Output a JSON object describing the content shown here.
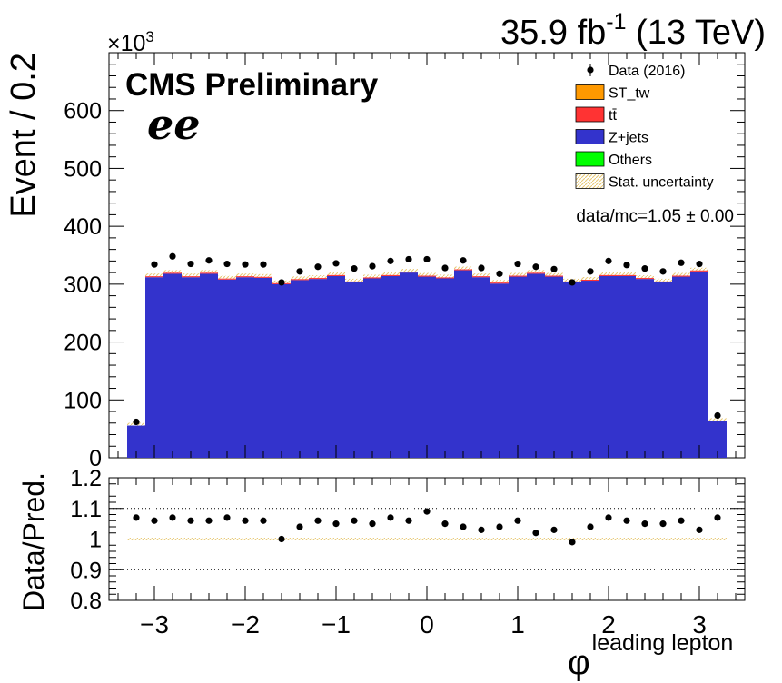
{
  "header": {
    "lumi": "35.9 fb",
    "lumi_exp": "-1",
    "energy": "(13 TeV)",
    "cms_label": "CMS Preliminary",
    "channel": "ee",
    "multiplier_base": "×10",
    "multiplier_exp": "3",
    "ratio_text": "data/mc=1.05 ± 0.00"
  },
  "colors": {
    "st_tw": "#ff9900",
    "ttbar": "#ff3333",
    "zjets": "#3333cc",
    "others": "#00ff00",
    "stat_unc": "#e8c872",
    "data": "#000000"
  },
  "chart_data": [
    {
      "type": "bar",
      "panel": "main",
      "ylabel": "Event / 0.2",
      "ylim": [
        0,
        700
      ],
      "y_unit_multiplier": 1000,
      "yticks": [
        0,
        100,
        200,
        300,
        400,
        500,
        600
      ],
      "xlim": [
        -3.5,
        3.5
      ],
      "bin_edges": [
        -3.3,
        -3.1,
        -2.9,
        -2.7,
        -2.5,
        -2.3,
        -2.1,
        -1.9,
        -1.7,
        -1.5,
        -1.3,
        -1.1,
        -0.9,
        -0.7,
        -0.5,
        -0.3,
        -0.1,
        0.1,
        0.3,
        0.5,
        0.7,
        0.9,
        1.1,
        1.3,
        1.5,
        1.7,
        1.9,
        2.1,
        2.3,
        2.5,
        2.7,
        2.9,
        3.1,
        3.3
      ],
      "legend": {
        "placement": "top-right",
        "entries": [
          {
            "label": "Data (2016)",
            "style": "marker"
          },
          {
            "label": "ST_tw",
            "style": "fill"
          },
          {
            "label": "tt̄",
            "style": "fill"
          },
          {
            "label": "Z+jets",
            "style": "fill"
          },
          {
            "label": "Others",
            "style": "fill"
          },
          {
            "label": "Stat. uncertainty",
            "style": "hatch"
          }
        ]
      },
      "series": [
        {
          "name": "Data (2016)",
          "kind": "points",
          "values": [
            62,
            334,
            348,
            335,
            341,
            335,
            334,
            334,
            303,
            322,
            330,
            336,
            327,
            331,
            340,
            343,
            343,
            328,
            341,
            328,
            318,
            335,
            330,
            326,
            303,
            322,
            340,
            333,
            327,
            322,
            337,
            335,
            73
          ]
        },
        {
          "name": "Z+jets",
          "kind": "stack",
          "values": [
            57,
            312,
            318,
            312,
            318,
            308,
            312,
            311,
            300,
            307,
            309,
            314,
            303,
            310,
            314,
            320,
            313,
            310,
            324,
            312,
            301,
            313,
            318,
            313,
            303,
            306,
            314,
            314,
            309,
            303,
            313,
            322,
            65
          ]
        },
        {
          "name": "tt̄",
          "kind": "stack",
          "values": [
            1,
            3,
            3,
            3,
            3,
            3,
            3,
            3,
            3,
            3,
            3,
            3,
            3,
            3,
            3,
            3,
            3,
            3,
            3,
            3,
            3,
            3,
            3,
            3,
            3,
            3,
            3,
            3,
            3,
            3,
            3,
            3,
            1
          ]
        },
        {
          "name": "ST_tw",
          "kind": "stack",
          "values": [
            0,
            1,
            1,
            1,
            1,
            1,
            1,
            1,
            1,
            1,
            1,
            1,
            1,
            1,
            1,
            1,
            1,
            1,
            1,
            1,
            1,
            1,
            1,
            1,
            1,
            1,
            1,
            1,
            1,
            1,
            1,
            1,
            0
          ]
        }
      ]
    },
    {
      "type": "scatter",
      "panel": "ratio",
      "ylabel": "Data/Pred.",
      "ylim": [
        0.8,
        1.2
      ],
      "yticks": [
        0.8,
        0.9,
        1,
        1.1,
        1.2
      ],
      "xlim": [
        -3.5,
        3.5
      ],
      "xticks": [
        -3,
        -2,
        -1,
        0,
        1,
        2,
        3
      ],
      "xlabel": "φ",
      "xlabel_sub": "leading lepton",
      "gridlines_y": [
        0.9,
        1.1
      ],
      "x": [
        -3.2,
        -3.0,
        -2.8,
        -2.6,
        -2.4,
        -2.2,
        -2.0,
        -1.8,
        -1.6,
        -1.4,
        -1.2,
        -1.0,
        -0.8,
        -0.6,
        -0.4,
        -0.2,
        0.0,
        0.2,
        0.4,
        0.6,
        0.8,
        1.0,
        1.2,
        1.4,
        1.6,
        1.8,
        2.0,
        2.2,
        2.4,
        2.6,
        2.8,
        3.0,
        3.2
      ],
      "values": [
        1.07,
        1.06,
        1.07,
        1.06,
        1.06,
        1.07,
        1.06,
        1.06,
        1.0,
        1.04,
        1.06,
        1.05,
        1.06,
        1.05,
        1.07,
        1.06,
        1.09,
        1.05,
        1.04,
        1.03,
        1.04,
        1.06,
        1.02,
        1.03,
        0.99,
        1.04,
        1.07,
        1.06,
        1.05,
        1.05,
        1.06,
        1.03,
        1.07
      ]
    }
  ]
}
